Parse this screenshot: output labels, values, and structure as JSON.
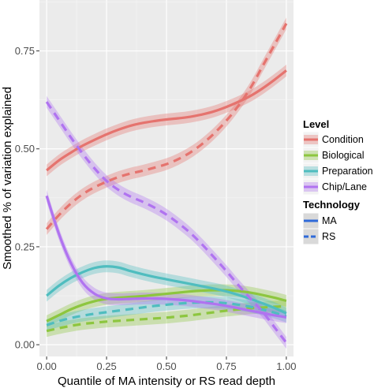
{
  "chart_data": {
    "type": "line",
    "xlabel": "Quantile of MA intensity or RS read depth",
    "ylabel": "Smoothed % of variation explained",
    "xlim": [
      -0.03,
      1.03
    ],
    "ylim": [
      -0.03,
      0.88
    ],
    "x_ticks": [
      0.0,
      0.25,
      0.5,
      0.75,
      1.0
    ],
    "x_tick_labels": [
      "0.00",
      "0.25",
      "0.50",
      "0.75",
      "1.00"
    ],
    "y_ticks": [
      0.0,
      0.25,
      0.5,
      0.75
    ],
    "y_tick_labels": [
      "0.00",
      "0.25",
      "0.50",
      "0.75"
    ],
    "grid": true,
    "background": "#ebebeb",
    "ribbon_opacity": 0.35,
    "band_halfwidth": 0.015,
    "legend": {
      "placement": "right",
      "level_title": "Level",
      "technology_title": "Technology",
      "levels": [
        {
          "label": "Condition",
          "color": "#e5736e"
        },
        {
          "label": "Biological",
          "color": "#8dc63f"
        },
        {
          "label": "Preparation",
          "color": "#4fbdbf"
        },
        {
          "label": "Chip/Lane",
          "color": "#b073f0"
        }
      ],
      "technologies": [
        {
          "label": "MA",
          "dash": "solid",
          "color": "#2f6ad9"
        },
        {
          "label": "RS",
          "dash": "dashed",
          "color": "#2f6ad9"
        }
      ]
    },
    "x": [
      0.0,
      0.05,
      0.1,
      0.15,
      0.2,
      0.25,
      0.3,
      0.35,
      0.4,
      0.45,
      0.5,
      0.55,
      0.6,
      0.65,
      0.7,
      0.75,
      0.8,
      0.85,
      0.9,
      0.95,
      1.0
    ],
    "series": [
      {
        "level": "Condition",
        "technology": "MA",
        "values": [
          0.445,
          0.47,
          0.49,
          0.508,
          0.523,
          0.537,
          0.549,
          0.559,
          0.566,
          0.571,
          0.575,
          0.578,
          0.582,
          0.588,
          0.596,
          0.607,
          0.62,
          0.635,
          0.654,
          0.676,
          0.7
        ]
      },
      {
        "level": "Condition",
        "technology": "RS",
        "values": [
          0.295,
          0.33,
          0.36,
          0.384,
          0.402,
          0.416,
          0.428,
          0.437,
          0.444,
          0.452,
          0.461,
          0.474,
          0.491,
          0.513,
          0.54,
          0.572,
          0.61,
          0.655,
          0.71,
          0.765,
          0.82
        ]
      },
      {
        "level": "Biological",
        "technology": "MA",
        "values": [
          0.06,
          0.075,
          0.09,
          0.102,
          0.111,
          0.117,
          0.12,
          0.122,
          0.124,
          0.127,
          0.13,
          0.133,
          0.136,
          0.138,
          0.139,
          0.139,
          0.137,
          0.133,
          0.127,
          0.12,
          0.112
        ]
      },
      {
        "level": "Biological",
        "technology": "RS",
        "values": [
          0.035,
          0.042,
          0.048,
          0.053,
          0.056,
          0.059,
          0.061,
          0.063,
          0.065,
          0.067,
          0.069,
          0.072,
          0.075,
          0.079,
          0.083,
          0.087,
          0.09,
          0.093,
          0.095,
          0.097,
          0.098
        ]
      },
      {
        "level": "Preparation",
        "technology": "MA",
        "values": [
          0.125,
          0.15,
          0.17,
          0.185,
          0.196,
          0.2,
          0.197,
          0.188,
          0.18,
          0.173,
          0.167,
          0.161,
          0.155,
          0.149,
          0.143,
          0.136,
          0.127,
          0.117,
          0.106,
          0.094,
          0.08
        ]
      },
      {
        "level": "Preparation",
        "technology": "RS",
        "values": [
          0.05,
          0.06,
          0.068,
          0.074,
          0.079,
          0.083,
          0.087,
          0.091,
          0.095,
          0.099,
          0.102,
          0.105,
          0.107,
          0.108,
          0.108,
          0.106,
          0.102,
          0.097,
          0.09,
          0.082,
          0.072
        ]
      },
      {
        "level": "Chip/Lane",
        "technology": "MA",
        "values": [
          0.38,
          0.285,
          0.21,
          0.158,
          0.13,
          0.118,
          0.116,
          0.117,
          0.118,
          0.118,
          0.117,
          0.115,
          0.112,
          0.108,
          0.104,
          0.099,
          0.093,
          0.087,
          0.081,
          0.075,
          0.07
        ]
      },
      {
        "level": "Chip/Lane",
        "technology": "RS",
        "values": [
          0.62,
          0.575,
          0.53,
          0.488,
          0.45,
          0.418,
          0.395,
          0.378,
          0.365,
          0.35,
          0.332,
          0.31,
          0.285,
          0.255,
          0.222,
          0.188,
          0.152,
          0.118,
          0.085,
          0.045,
          0.005
        ]
      }
    ]
  }
}
